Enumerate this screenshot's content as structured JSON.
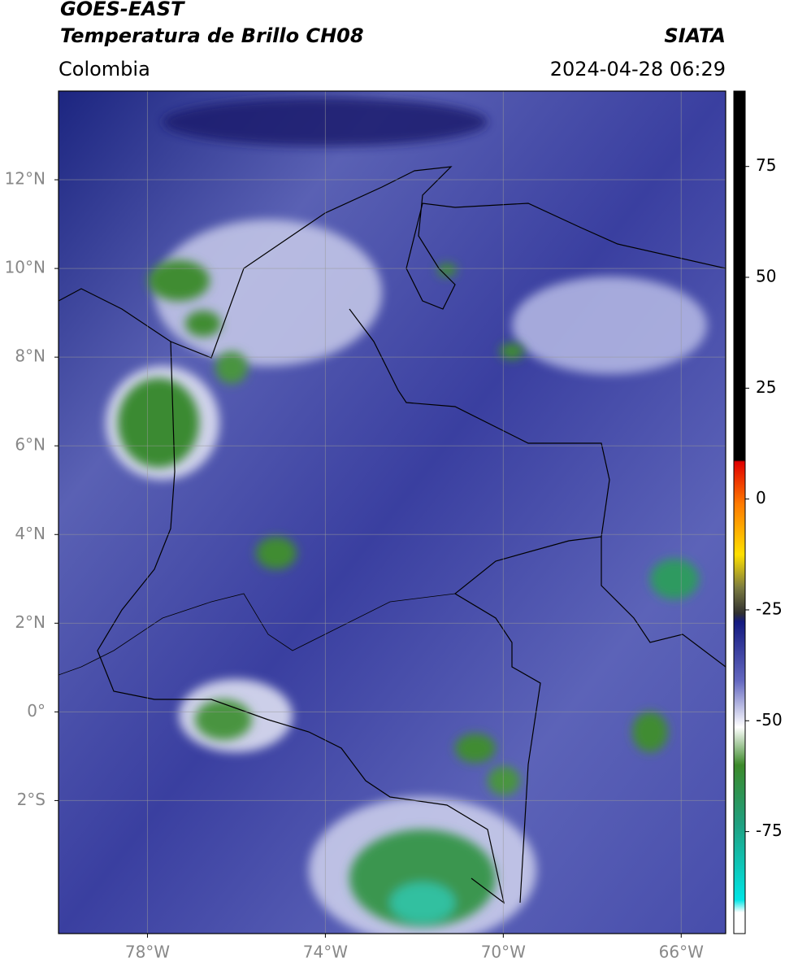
{
  "header": {
    "title": "GOES-EAST",
    "subtitle": "Temperatura de Brillo CH08",
    "source": "SIATA",
    "region": "Colombia",
    "timestamp": "2024-04-28 06:29"
  },
  "map": {
    "xlim": [
      -80,
      -65
    ],
    "ylim": [
      -5,
      14
    ],
    "xticks": [
      {
        "value": -78,
        "label": "78°W"
      },
      {
        "value": -74,
        "label": "74°W"
      },
      {
        "value": -70,
        "label": "70°W"
      },
      {
        "value": -66,
        "label": "66°W"
      }
    ],
    "yticks": [
      {
        "value": 12,
        "label": "12°N"
      },
      {
        "value": 10,
        "label": "10°N"
      },
      {
        "value": 8,
        "label": "8°N"
      },
      {
        "value": 6,
        "label": "6°N"
      },
      {
        "value": 4,
        "label": "4°N"
      },
      {
        "value": 2,
        "label": "2°N"
      },
      {
        "value": 0,
        "label": "0°"
      },
      {
        "value": -2,
        "label": "2°S"
      }
    ],
    "grid": true
  },
  "colorbar": {
    "lim": [
      -98,
      92
    ],
    "ticks": [
      75,
      50,
      25,
      0,
      -25,
      -50,
      -75
    ]
  }
}
